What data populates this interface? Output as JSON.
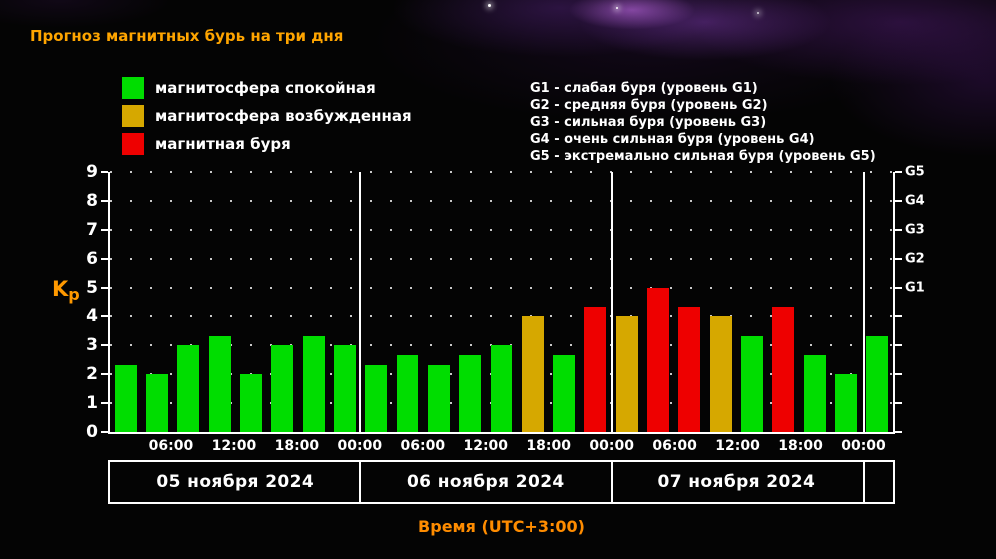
{
  "title": "Прогноз магнитных бурь на три дня",
  "legend": {
    "items": [
      {
        "label": "магнитосфера спокойная",
        "color": "#00dd00"
      },
      {
        "label": "магнитосфера возбужденная",
        "color": "#d6a800"
      },
      {
        "label": "магнитная буря",
        "color": "#ee0000"
      }
    ]
  },
  "storm_scale": {
    "lines": [
      "G1 - слабая буря (уровень G1)",
      "G2 - средняя буря (уровень G2)",
      "G3 - сильная буря (уровень G3)",
      "G4 - очень сильная буря (уровень G4)",
      "G5 - экстремально сильная буря (уровень G5)"
    ]
  },
  "chart_data": {
    "type": "bar",
    "title": "Прогноз магнитных бурь на три дня",
    "ylabel": "Kp",
    "kp_label": {
      "base": "K",
      "sub": "p"
    },
    "xlabel": "Время (UTC+3:00)",
    "ylim": [
      0,
      9
    ],
    "yticks": [
      0,
      1,
      2,
      3,
      4,
      5,
      6,
      7,
      8,
      9
    ],
    "right_axis": [
      {
        "label": "G5",
        "kp": 9
      },
      {
        "label": "G4",
        "kp": 8
      },
      {
        "label": "G3",
        "kp": 7
      },
      {
        "label": "G2",
        "kp": 6
      },
      {
        "label": "G1",
        "kp": 5
      }
    ],
    "grid": true,
    "hours_span": 75,
    "bar_hours": 3,
    "x_ticks": [
      {
        "hour": 6,
        "label": "06:00"
      },
      {
        "hour": 12,
        "label": "12:00"
      },
      {
        "hour": 18,
        "label": "18:00"
      },
      {
        "hour": 24,
        "label": "00:00"
      },
      {
        "hour": 30,
        "label": "06:00"
      },
      {
        "hour": 36,
        "label": "12:00"
      },
      {
        "hour": 42,
        "label": "18:00"
      },
      {
        "hour": 48,
        "label": "00:00"
      },
      {
        "hour": 54,
        "label": "06:00"
      },
      {
        "hour": 60,
        "label": "12:00"
      },
      {
        "hour": 66,
        "label": "18:00"
      },
      {
        "hour": 72,
        "label": "00:00"
      }
    ],
    "day_separators_hours": [
      24,
      48,
      72
    ],
    "days": [
      {
        "label": "05 ноября 2024",
        "start_hour": 0,
        "end_hour": 24
      },
      {
        "label": "06 ноября 2024",
        "start_hour": 24,
        "end_hour": 48
      },
      {
        "label": "07 ноября 2024",
        "start_hour": 48,
        "end_hour": 72
      }
    ],
    "palette": {
      "green": "#00dd00",
      "yellow": "#d6a800",
      "red": "#ee0000"
    },
    "bars": [
      {
        "start_hour": 0,
        "kp": 2.33,
        "level": "green"
      },
      {
        "start_hour": 3,
        "kp": 2.0,
        "level": "green"
      },
      {
        "start_hour": 6,
        "kp": 3.0,
        "level": "green"
      },
      {
        "start_hour": 9,
        "kp": 3.33,
        "level": "green"
      },
      {
        "start_hour": 12,
        "kp": 2.0,
        "level": "green"
      },
      {
        "start_hour": 15,
        "kp": 3.0,
        "level": "green"
      },
      {
        "start_hour": 18,
        "kp": 3.33,
        "level": "green"
      },
      {
        "start_hour": 21,
        "kp": 3.0,
        "level": "green"
      },
      {
        "start_hour": 24,
        "kp": 2.33,
        "level": "green"
      },
      {
        "start_hour": 27,
        "kp": 2.67,
        "level": "green"
      },
      {
        "start_hour": 30,
        "kp": 2.33,
        "level": "green"
      },
      {
        "start_hour": 33,
        "kp": 2.67,
        "level": "green"
      },
      {
        "start_hour": 36,
        "kp": 3.0,
        "level": "green"
      },
      {
        "start_hour": 39,
        "kp": 4.0,
        "level": "yellow"
      },
      {
        "start_hour": 42,
        "kp": 2.67,
        "level": "green"
      },
      {
        "start_hour": 45,
        "kp": 4.33,
        "level": "red"
      },
      {
        "start_hour": 48,
        "kp": 4.0,
        "level": "yellow"
      },
      {
        "start_hour": 51,
        "kp": 5.0,
        "level": "red"
      },
      {
        "start_hour": 54,
        "kp": 4.33,
        "level": "red"
      },
      {
        "start_hour": 57,
        "kp": 4.0,
        "level": "yellow"
      },
      {
        "start_hour": 60,
        "kp": 3.33,
        "level": "green"
      },
      {
        "start_hour": 63,
        "kp": 4.33,
        "level": "red"
      },
      {
        "start_hour": 66,
        "kp": 2.67,
        "level": "green"
      },
      {
        "start_hour": 69,
        "kp": 2.0,
        "level": "green"
      },
      {
        "start_hour": 72,
        "kp": 3.33,
        "level": "green"
      }
    ]
  }
}
